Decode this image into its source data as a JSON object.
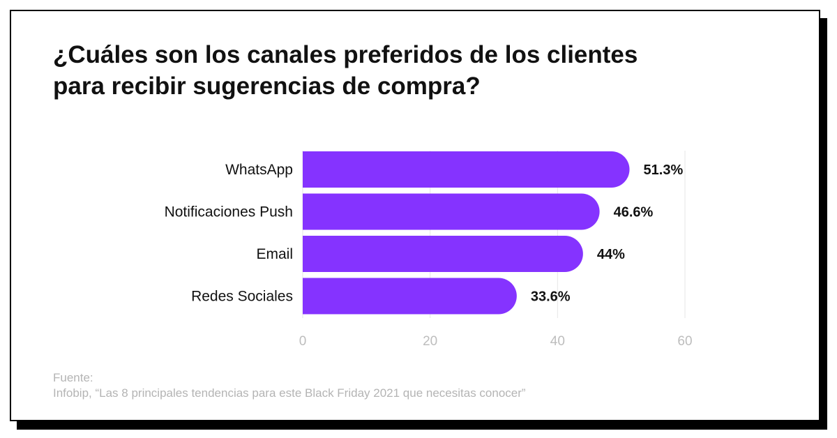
{
  "title": {
    "line1": "¿Cuáles son los canales preferidos de los clientes",
    "line2": "para recibir sugerencias de compra?"
  },
  "source": {
    "label": "Fuente:",
    "text": "Infobip, “Las 8 principales tendencias para este Black Friday 2021 que necesitas conocer”"
  },
  "colors": {
    "bar": "#8533FF",
    "grid": "#e6e6e6",
    "axis_text": "#bdbdbd",
    "text": "#111111"
  },
  "chart_data": {
    "type": "bar",
    "orientation": "horizontal",
    "categories": [
      "WhatsApp",
      "Notificaciones Push",
      "Email",
      "Redes Sociales"
    ],
    "values": [
      51.3,
      46.6,
      44,
      33.6
    ],
    "value_labels": [
      "51.3%",
      "46.6%",
      "44%",
      "33.6%"
    ],
    "xlim": [
      0,
      60
    ],
    "xticks": [
      0,
      20,
      40,
      60
    ],
    "grid": true
  }
}
